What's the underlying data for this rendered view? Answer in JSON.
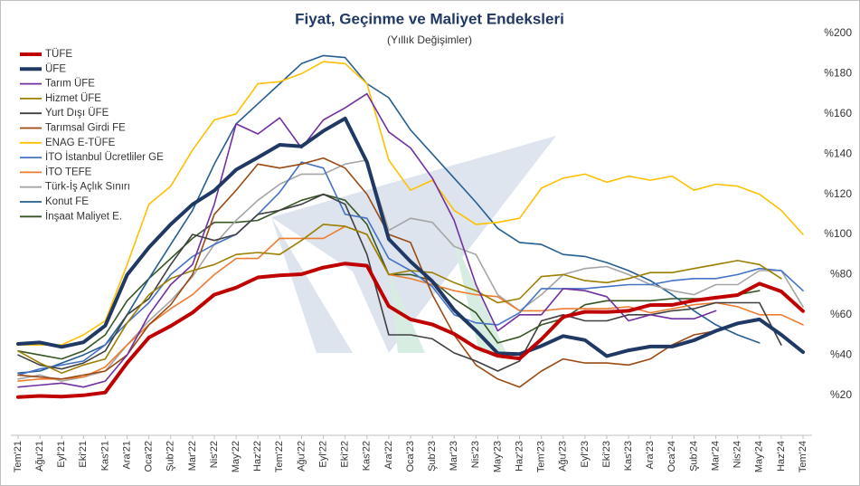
{
  "chart_data": {
    "type": "line",
    "title": "Fiyat, Geçinme ve Maliyet Endeksleri",
    "subtitle": "(Yıllık Değişimler)",
    "categories": [
      "Tem'21",
      "Ağu'21",
      "Eyl'21",
      "Eki'21",
      "Kas'21",
      "Ara'21",
      "Oca'22",
      "Şub'22",
      "Mar'22",
      "Nis'22",
      "May'22",
      "Haz'22",
      "Tem'22",
      "Ağu'22",
      "Eyl'22",
      "Eki'22",
      "Kas'22",
      "Ara'22",
      "Oca'23",
      "Şub'23",
      "Mar'23",
      "Nis'23",
      "May'23",
      "Haz'23",
      "Tem'23",
      "Ağu'23",
      "Eyl'23",
      "Eki'23",
      "Kas'23",
      "Ara'23",
      "Oca'24",
      "Şub'24",
      "Mar'24",
      "Nis'24",
      "May'24",
      "Haz'24",
      "Tem'24"
    ],
    "ylim": [
      0,
      200
    ],
    "yticks": [
      {
        "value": 20,
        "label": "%20"
      },
      {
        "value": 40,
        "label": "%40"
      },
      {
        "value": 60,
        "label": "%60"
      },
      {
        "value": 80,
        "label": "%80"
      },
      {
        "value": 100,
        "label": "%100"
      },
      {
        "value": 120,
        "label": "%120"
      },
      {
        "value": 140,
        "label": "%140"
      },
      {
        "value": 160,
        "label": "%160"
      },
      {
        "value": 180,
        "label": "%180"
      },
      {
        "value": 200,
        "label": "%200"
      }
    ],
    "series": [
      {
        "name": "TÜFE",
        "color": "#c00000",
        "values": [
          19,
          19.6,
          19.3,
          19.9,
          21.3,
          36.1,
          48.7,
          54.4,
          61.1,
          70,
          73.5,
          78.6,
          79.6,
          80.2,
          83.5,
          85.5,
          84.4,
          64.3,
          57.7,
          55.2,
          50.5,
          43.7,
          39.6,
          38.2,
          47.8,
          58.9,
          61.5,
          61.4,
          62,
          64.8,
          64.9,
          67.1,
          68.5,
          69.8,
          75.5,
          71.6,
          61.8
        ]
      },
      {
        "name": "ÜFE",
        "color": "#1f3864",
        "values": [
          45.5,
          46.2,
          44,
          46.3,
          54.6,
          79.9,
          93.5,
          105,
          114.97,
          121.8,
          132.2,
          138.3,
          144.6,
          143.8,
          151.5,
          157.7,
          136,
          97.7,
          86.5,
          76.6,
          62.4,
          52.1,
          40.8,
          40.4,
          44.5,
          49.4,
          47.4,
          39.4,
          42.3,
          44.2,
          44.2,
          47.3,
          51.97,
          55.7,
          57.7,
          50.1,
          41.4
        ]
      },
      {
        "name": "Tarım ÜFE",
        "color": "#7030a0",
        "values": [
          24,
          25,
          26,
          24,
          27,
          40,
          60,
          75,
          85,
          115,
          155,
          150,
          158,
          143,
          157,
          163,
          170,
          151,
          143,
          128,
          107,
          75,
          52,
          60,
          60,
          73,
          72,
          69,
          57,
          60,
          58,
          58,
          62,
          null,
          null,
          null,
          null
        ]
      },
      {
        "name": "Hizmet ÜFE",
        "color": "#9c7f00",
        "values": [
          42,
          36,
          31,
          35,
          38,
          56,
          70,
          78,
          82,
          85,
          90,
          91,
          90,
          97,
          105,
          104,
          100,
          80,
          82,
          81,
          76,
          72,
          66,
          68,
          79,
          80,
          77,
          76,
          78,
          81,
          81,
          83,
          85,
          87,
          85,
          78,
          null
        ]
      },
      {
        "name": "Yurt Dışı ÜFE",
        "color": "#404040",
        "values": [
          40,
          35,
          33,
          36,
          42,
          60,
          68,
          85,
          100,
          97,
          100,
          110,
          112,
          115,
          120,
          115,
          90,
          50,
          50,
          48,
          41,
          37,
          32,
          37,
          57,
          60,
          57,
          57,
          60,
          60,
          62,
          63,
          66,
          66,
          66,
          45,
          null
        ]
      },
      {
        "name": "Tarımsal Girdi FE",
        "color": "#9b4a13",
        "values": [
          30,
          29,
          28,
          30,
          32,
          40,
          55,
          65,
          80,
          110,
          122,
          135,
          133,
          135,
          138,
          133,
          120,
          100,
          96,
          70,
          50,
          35,
          28,
          24,
          32,
          38,
          36,
          36,
          35,
          38,
          45,
          50,
          52,
          null,
          null,
          null,
          null
        ]
      },
      {
        "name": "ENAG E-TÜFE",
        "color": "#ffc000",
        "values": [
          45,
          45,
          45,
          50,
          57,
          85,
          115,
          124,
          142,
          157,
          160,
          175,
          176,
          180,
          186,
          185,
          175,
          137,
          122,
          127,
          112,
          105,
          106,
          108,
          123,
          128,
          130,
          126,
          129,
          127,
          129,
          122,
          125,
          124,
          120,
          112,
          100
        ]
      },
      {
        "name": "İTO İstanbul Ücretliler GE",
        "color": "#4472c4",
        "values": [
          30,
          33,
          35,
          37,
          45,
          56,
          66,
          80,
          89,
          95,
          100,
          110,
          121,
          136,
          133,
          110,
          108,
          88,
          82,
          74,
          60,
          56,
          55,
          61,
          73,
          73,
          73,
          74,
          75,
          75,
          77,
          78,
          78,
          80,
          83,
          82,
          72
        ]
      },
      {
        "name": "İTO TEFE",
        "color": "#ed7d31",
        "values": [
          27,
          28,
          28,
          29,
          34,
          45,
          55,
          63,
          70,
          80,
          88,
          88,
          98,
          98,
          98,
          104,
          100,
          80,
          78,
          75,
          72,
          70,
          69,
          62,
          62,
          63,
          63,
          63,
          64,
          61,
          63,
          65,
          66,
          64,
          60,
          60,
          55
        ]
      },
      {
        "name": "Türk-İş Açlık Sınırı",
        "color": "#a5a5a5",
        "values": [
          28,
          30,
          27,
          29,
          32,
          45,
          57,
          67,
          79,
          95,
          107,
          117,
          125,
          130,
          130,
          135,
          137,
          102,
          108,
          106,
          94,
          90,
          70,
          62,
          70,
          80,
          83,
          84,
          80,
          75,
          72,
          70,
          75,
          75,
          82,
          82,
          64
        ]
      },
      {
        "name": "Konut FE",
        "color": "#255e91",
        "values": [
          31,
          32,
          36,
          40,
          45,
          60,
          78,
          95,
          112,
          135,
          155,
          165,
          175,
          185,
          189,
          188,
          175,
          168,
          152,
          140,
          128,
          116,
          103,
          96,
          95,
          90,
          89,
          86,
          82,
          77,
          70,
          62,
          55,
          50,
          46,
          null,
          null
        ]
      },
      {
        "name": "İnşaat Maliyet E.",
        "color": "#375623",
        "values": [
          42,
          40,
          38,
          42,
          50,
          67,
          78,
          88,
          98,
          106,
          106,
          107,
          112,
          117,
          120,
          117,
          105,
          80,
          80,
          77,
          68,
          61,
          46,
          49,
          55,
          58,
          65,
          67,
          67,
          67,
          68,
          68,
          68,
          70,
          72,
          null,
          null
        ]
      }
    ]
  }
}
